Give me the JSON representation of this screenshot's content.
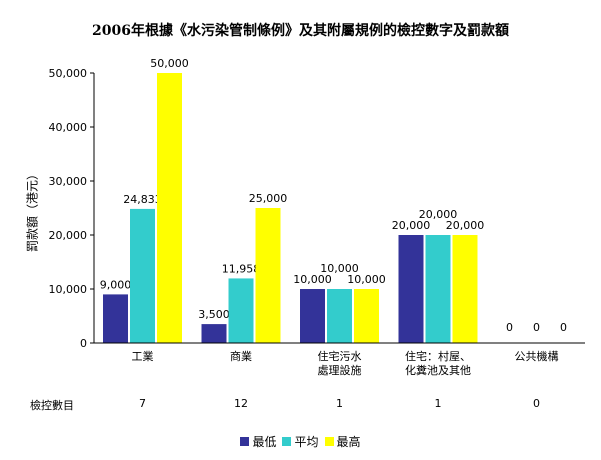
{
  "chart_data": {
    "type": "bar",
    "title": "2006年根據《水污染管制條例》及其附屬規例的檢控數字及罰款額",
    "ylabel": "罰款額（港元）",
    "xlabel": "",
    "ylim": [
      0,
      50000
    ],
    "yticks": [
      "0",
      "10,000",
      "20,000",
      "30,000",
      "40,000",
      "50,000"
    ],
    "grid": false,
    "legend_position": "bottom",
    "categories": [
      [
        "工業"
      ],
      [
        "商業"
      ],
      [
        "住宅污水",
        "處理設施"
      ],
      [
        "住宅：村屋、",
        "化糞池及其他"
      ],
      [
        "公共機構"
      ]
    ],
    "series": [
      {
        "name": "最低",
        "color": "#333399",
        "values": [
          9000,
          3500,
          10000,
          20000,
          0
        ],
        "labels": [
          "9,000",
          "3,500",
          "10,000",
          "20,000",
          "0"
        ]
      },
      {
        "name": "平均",
        "color": "#33CCCC",
        "values": [
          24833,
          11958,
          10000,
          20000,
          0
        ],
        "labels": [
          "24,833",
          "11,958",
          "10,000",
          "20,000",
          "0"
        ]
      },
      {
        "name": "最高",
        "color": "#FFFF00",
        "values": [
          50000,
          25000,
          10000,
          20000,
          0
        ],
        "labels": [
          "50,000",
          "25,000",
          "10,000",
          "20,000",
          "0"
        ]
      }
    ],
    "table": {
      "row_label": "檢控數目",
      "values": [
        "7",
        "12",
        "1",
        "1",
        "0"
      ]
    }
  }
}
